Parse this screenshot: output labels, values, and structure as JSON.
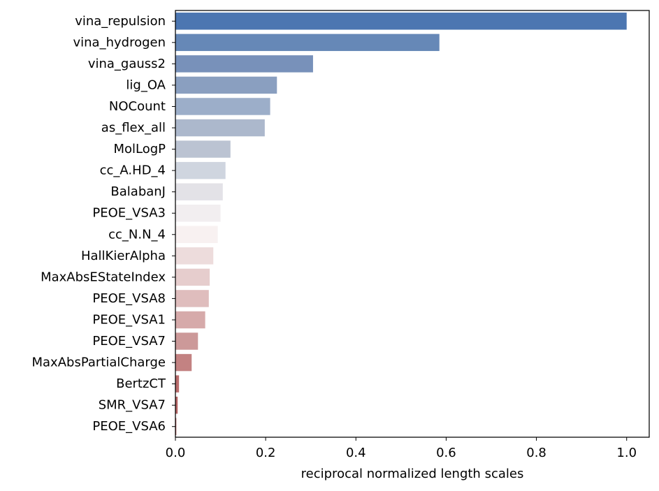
{
  "chart_data": {
    "type": "bar",
    "orientation": "horizontal",
    "title": "",
    "xlabel": "reciprocal normalized length scales",
    "ylabel": "",
    "xlim": [
      0,
      1.05
    ],
    "xticks": [
      "0.0",
      "0.2",
      "0.4",
      "0.6",
      "0.8",
      "1.0"
    ],
    "grid": false,
    "categories": [
      "vina_repulsion",
      "vina_hydrogen",
      "vina_gauss2",
      "lig_OA",
      "NOCount",
      "as_flex_all",
      "MolLogP",
      "cc_A.HD_4",
      "BalabanJ",
      "PEOE_VSA3",
      "cc_N.N_4",
      "HallKierAlpha",
      "MaxAbsEStateIndex",
      "PEOE_VSA8",
      "PEOE_VSA1",
      "PEOE_VSA7",
      "MaxAbsPartialCharge",
      "BertzCT",
      "SMR_VSA7",
      "PEOE_VSA6"
    ],
    "values": [
      1.0,
      0.585,
      0.305,
      0.225,
      0.21,
      0.198,
      0.122,
      0.111,
      0.105,
      0.1,
      0.094,
      0.084,
      0.076,
      0.074,
      0.066,
      0.05,
      0.036,
      0.008,
      0.005,
      0.002
    ],
    "colors": [
      "#4c76b1",
      "#6688b7",
      "#7891ba",
      "#8a9fc0",
      "#9caec9",
      "#acb8cc",
      "#bbc3d2",
      "#cfd5df",
      "#e3e2e7",
      "#f2eef0",
      "#f8f1f1",
      "#eddcdc",
      "#e6cdcd",
      "#dfbdbd",
      "#d6aaaa",
      "#cc9999",
      "#c38282",
      "#b96c6c",
      "#b46464",
      "#ad5a5a"
    ]
  }
}
